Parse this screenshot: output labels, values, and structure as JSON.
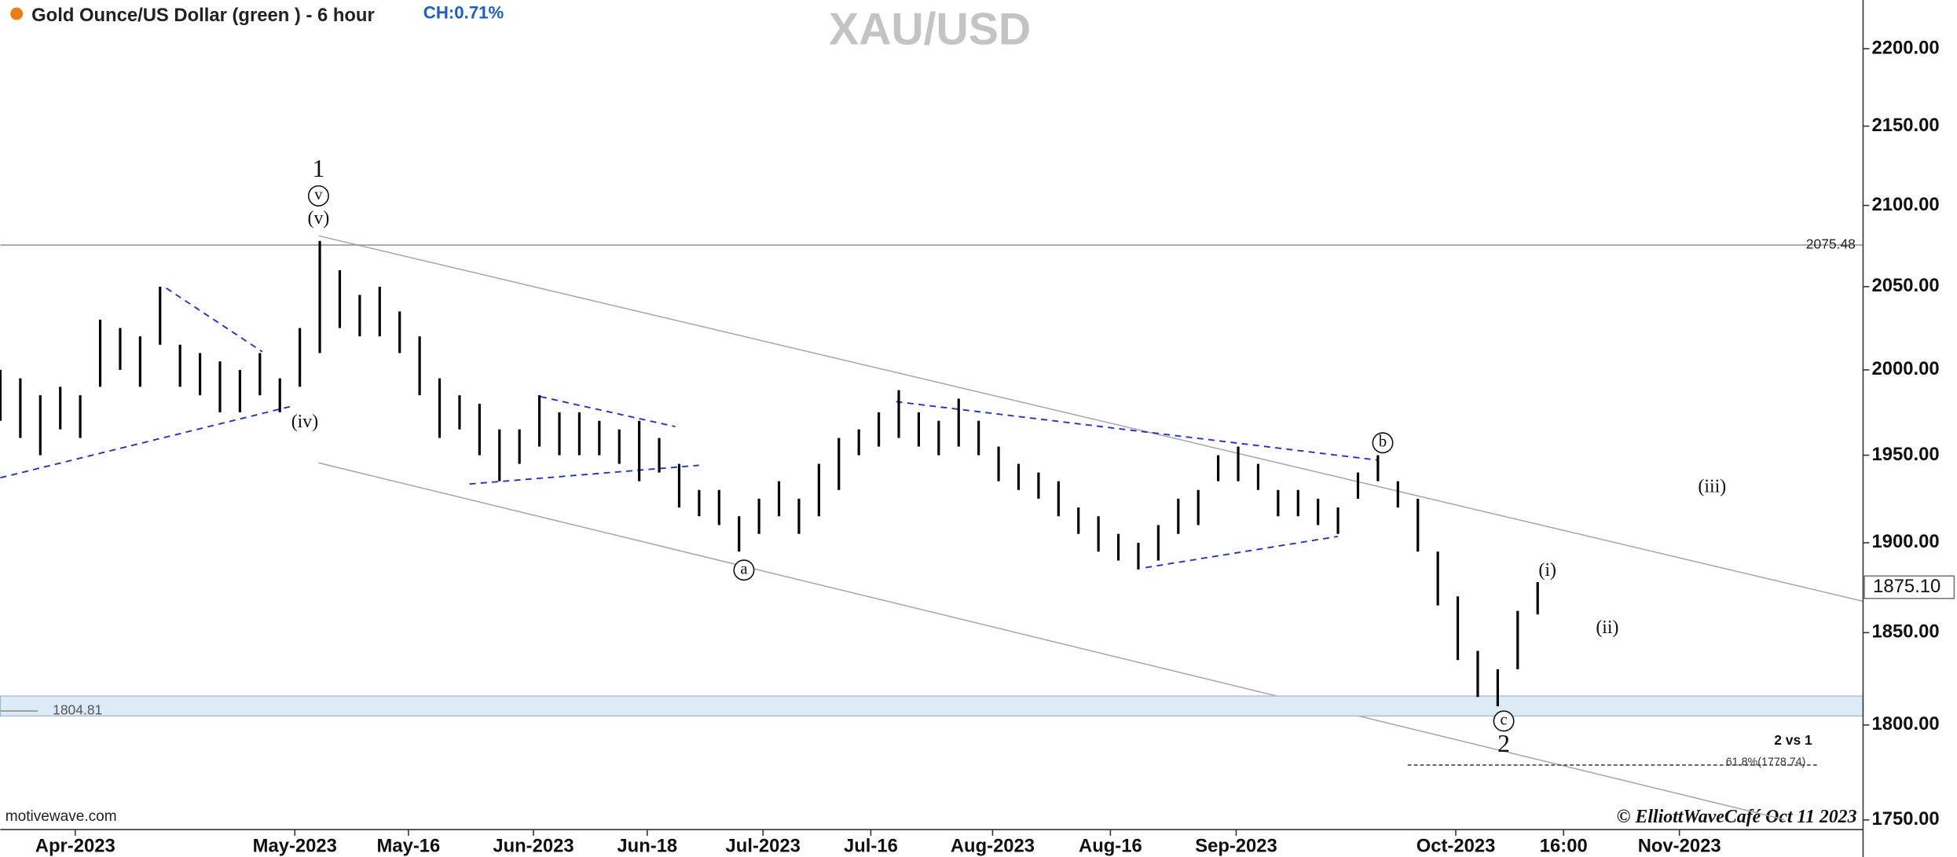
{
  "chart_data": {
    "type": "ohlc",
    "header": "Gold Ounce/US Dollar (green ) - 6 hour",
    "change": "CH:0.71%",
    "title": "XAU/USD",
    "source": "motivewave.com",
    "credit": "© ElliottWaveCafé Oct 11 2023",
    "color": "#000000",
    "log_scale": true,
    "highs": [
      2000,
      1995,
      1985,
      1990,
      1985,
      2030,
      2025,
      2020,
      2050,
      2015,
      2010,
      2005,
      2000,
      2010,
      1995,
      2025,
      2078,
      2060,
      2045,
      2050,
      2035,
      2020,
      1995,
      1985,
      1980,
      1965,
      1965,
      1985,
      1975,
      1975,
      1970,
      1965,
      1970,
      1960,
      1945,
      1930,
      1930,
      1915,
      1925,
      1935,
      1925,
      1945,
      1960,
      1965,
      1975,
      1988,
      1975,
      1970,
      1983,
      1970,
      1955,
      1945,
      1940,
      1935,
      1920,
      1915,
      1905,
      1900,
      1910,
      1925,
      1930,
      1950,
      1955,
      1945,
      1930,
      1930,
      1925,
      1920,
      1940,
      1950,
      1935,
      1925,
      1895,
      1870,
      1840,
      1830,
      1862,
      1878
    ],
    "lows": [
      1970,
      1960,
      1950,
      1965,
      1960,
      1990,
      2000,
      1990,
      2015,
      1990,
      1985,
      1975,
      1975,
      1985,
      1975,
      1990,
      2010,
      2025,
      2020,
      2020,
      2010,
      1985,
      1960,
      1965,
      1950,
      1935,
      1945,
      1955,
      1950,
      1950,
      1950,
      1945,
      1935,
      1940,
      1920,
      1915,
      1910,
      1895,
      1905,
      1915,
      1905,
      1915,
      1930,
      1950,
      1955,
      1960,
      1955,
      1950,
      1955,
      1950,
      1935,
      1930,
      1925,
      1915,
      1905,
      1895,
      1890,
      1885,
      1890,
      1905,
      1910,
      1935,
      1935,
      1930,
      1915,
      1915,
      1910,
      1905,
      1925,
      1935,
      1920,
      1895,
      1865,
      1835,
      1815,
      1810,
      1830,
      1860
    ],
    "xlim": [
      0,
      93.3
    ],
    "xticks": [
      {
        "value": 3.75,
        "label": "Apr-2023"
      },
      {
        "value": 14.75,
        "label": "May-2023"
      },
      {
        "value": 20.44,
        "label": "May-16"
      },
      {
        "value": 26.7,
        "label": "Jun-2023"
      },
      {
        "value": 32.4,
        "label": "Jun-18"
      },
      {
        "value": 38.2,
        "label": "Jul-2023"
      },
      {
        "value": 43.6,
        "label": "Jul-16"
      },
      {
        "value": 49.7,
        "label": "Aug-2023"
      },
      {
        "value": 55.6,
        "label": "Aug-16"
      },
      {
        "value": 61.9,
        "label": "Sep-2023"
      },
      {
        "value": 72.9,
        "label": "Oct-2023"
      },
      {
        "value": 78.3,
        "label": "16:00"
      },
      {
        "value": 84.1,
        "label": "Nov-2023"
      }
    ],
    "ylim": [
      1745,
      2232
    ],
    "yticks": [
      {
        "value": 1750,
        "label": "1750.00"
      },
      {
        "value": 1800,
        "label": "1800.00"
      },
      {
        "value": 1850,
        "label": "1850.00"
      },
      {
        "value": 1900,
        "label": "1900.00"
      },
      {
        "value": 1950,
        "label": "1950.00"
      },
      {
        "value": 2000,
        "label": "2000.00"
      },
      {
        "value": 2050,
        "label": "2050.00"
      },
      {
        "value": 2100,
        "label": "2100.00"
      },
      {
        "value": 2150,
        "label": "2150.00"
      },
      {
        "value": 2200,
        "label": "2200.00"
      }
    ],
    "high_level": 2075.48,
    "support_level": 1804.81,
    "last_price": {
      "value": 1875.1,
      "label": "1875.10"
    },
    "fib_level": {
      "value": 1778.74,
      "label": "61.8%(1778.74)"
    },
    "wave_labels": [
      "1",
      "v",
      "(v)",
      "(iv)",
      "a",
      "b",
      "c",
      "2",
      "(i)",
      "(ii)",
      "(iii)",
      "2 vs 1"
    ]
  }
}
